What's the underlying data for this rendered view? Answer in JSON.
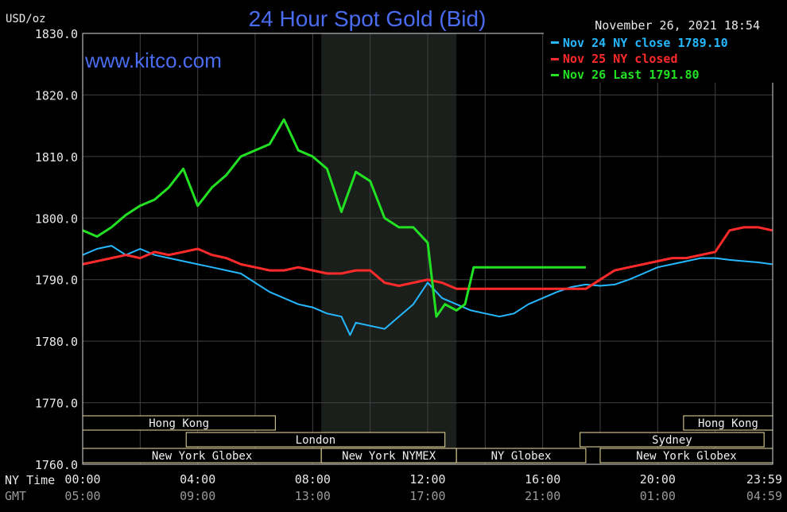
{
  "header": {
    "title": "24 Hour Spot Gold (Bid)",
    "site": "www.kitco.com",
    "unit": "USD/oz",
    "timestamp": "November 26, 2021 18:54"
  },
  "legend": [
    {
      "label": "Nov 24 NY close 1789.10",
      "color": "#26b8ff"
    },
    {
      "label": "Nov 25 NY closed",
      "color": "#ff2a2a"
    },
    {
      "label": "Nov 26 Last 1791.80",
      "color": "#22e022"
    }
  ],
  "time_rows": {
    "ny_label": "NY Time",
    "gmt_label": "GMT"
  },
  "sessions": [
    {
      "label": "Hong Kong",
      "row": 0,
      "start": 0,
      "end": 6.7
    },
    {
      "label": "Hong Kong",
      "row": 0,
      "start": 20.9,
      "end": 24
    },
    {
      "label": "London",
      "row": 1,
      "start": 3.6,
      "end": 12.6
    },
    {
      "label": "Sydney",
      "row": 1,
      "start": 17.3,
      "end": 23.7
    },
    {
      "label": "New York Globex",
      "row": 2,
      "start": 0,
      "end": 8.3
    },
    {
      "label": "New York NYMEX",
      "row": 2,
      "start": 8.3,
      "end": 13.0
    },
    {
      "label": "NY Globex",
      "row": 2,
      "start": 13.0,
      "end": 17.5
    },
    {
      "label": "New York Globex",
      "row": 2,
      "start": 18.0,
      "end": 24
    }
  ],
  "colors": {
    "nov24": "#26b8ff",
    "nov25": "#ff2a2a",
    "nov26": "#22e022",
    "grid": "#404040",
    "shade": "#1b1f1b"
  },
  "chart_data": {
    "type": "line",
    "title": "24 Hour Spot Gold (Bid)",
    "ylabel": "USD/oz",
    "ylim": [
      1760,
      1830
    ],
    "xlim": [
      0,
      24
    ],
    "y_ticks": [
      "1830.0",
      "1820.0",
      "1810.0",
      "1800.0",
      "1790.0",
      "1780.0",
      "1770.0",
      "1760.0"
    ],
    "x_ticks_ny": [
      "00:00",
      "04:00",
      "08:00",
      "12:00",
      "16:00",
      "20:00",
      "23:59"
    ],
    "x_ticks_gmt": [
      "05:00",
      "09:00",
      "13:00",
      "17:00",
      "21:00",
      "01:00",
      "04:59"
    ],
    "shaded_hours": [
      8.3,
      13.0
    ],
    "grid": true,
    "legend_position": "top-right",
    "series": [
      {
        "name": "Nov 24 NY close 1789.10",
        "x": [
          0,
          0.5,
          1,
          1.5,
          2,
          2.5,
          3,
          3.5,
          4,
          4.5,
          5,
          5.5,
          6,
          6.5,
          7,
          7.5,
          8,
          8.5,
          9,
          9.3,
          9.5,
          10,
          10.5,
          11,
          11.5,
          12,
          12.5,
          13,
          13.5,
          14,
          14.5,
          15,
          15.5,
          16,
          16.5,
          17,
          17.5,
          18,
          18.5,
          19,
          19.5,
          20,
          20.5,
          21,
          21.5,
          22,
          22.5,
          23,
          23.5,
          23.98
        ],
        "y": [
          1794,
          1795,
          1795.5,
          1794,
          1795,
          1794,
          1793.5,
          1793,
          1792.5,
          1792,
          1791.5,
          1791,
          1789.5,
          1788,
          1787,
          1786,
          1785.5,
          1784.5,
          1784,
          1781,
          1783,
          1782.5,
          1782,
          1784,
          1786,
          1789.5,
          1787,
          1786,
          1785,
          1784.5,
          1784,
          1784.5,
          1786,
          1787,
          1788,
          1788.8,
          1789.2,
          1789,
          1789.2,
          1790,
          1791,
          1792,
          1792.5,
          1793,
          1793.5,
          1793.5,
          1793.2,
          1793,
          1792.8,
          1792.5
        ]
      },
      {
        "name": "Nov 25 NY closed",
        "x": [
          0,
          0.5,
          1,
          1.5,
          2,
          2.5,
          3,
          3.5,
          4,
          4.5,
          5,
          5.5,
          6,
          6.5,
          7,
          7.5,
          8,
          8.5,
          9,
          9.5,
          10,
          10.5,
          11,
          11.5,
          12,
          12.5,
          13,
          17.5,
          18,
          18.5,
          19,
          19.5,
          20,
          20.5,
          21,
          21.5,
          22,
          22.5,
          23,
          23.5,
          23.98
        ],
        "y": [
          1792.5,
          1793,
          1793.5,
          1794,
          1793.5,
          1794.5,
          1794,
          1794.5,
          1795,
          1794,
          1793.5,
          1792.5,
          1792,
          1791.5,
          1791.5,
          1792,
          1791.5,
          1791,
          1791,
          1791.5,
          1791.5,
          1789.5,
          1789,
          1789.5,
          1790,
          1789.5,
          1788.5,
          1788.5,
          1790,
          1791.5,
          1792,
          1792.5,
          1793,
          1793.5,
          1793.5,
          1794,
          1794.5,
          1798,
          1798.5,
          1798.5,
          1798
        ]
      },
      {
        "name": "Nov 26 Last 1791.80",
        "x": [
          0,
          0.5,
          1,
          1.5,
          2,
          2.5,
          3,
          3.5,
          4,
          4.5,
          5,
          5.5,
          6,
          6.5,
          7,
          7.5,
          8,
          8.5,
          9,
          9.5,
          10,
          10.5,
          11,
          11.5,
          12,
          12.3,
          12.6,
          13,
          13.3,
          13.6,
          14.5,
          17.5
        ],
        "y": [
          1798,
          1797,
          1798.5,
          1800.5,
          1802,
          1803,
          1805,
          1808,
          1802,
          1805,
          1807,
          1810,
          1811,
          1812,
          1816,
          1811,
          1810,
          1808,
          1801,
          1807.5,
          1806,
          1800,
          1798.5,
          1798.5,
          1796,
          1784,
          1786,
          1785,
          1786,
          1792,
          1792,
          1792
        ]
      }
    ]
  }
}
